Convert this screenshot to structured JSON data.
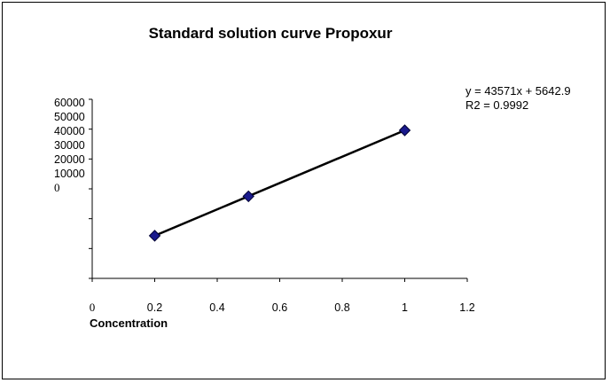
{
  "chart_data": {
    "type": "scatter",
    "title": "Standard solution curve Propoxur",
    "xlabel": "Concentration",
    "ylabel": "",
    "x_ticks": [
      {
        "value": 0,
        "label": "0"
      },
      {
        "value": 0.2,
        "label": "0.2"
      },
      {
        "value": 0.4,
        "label": "0.4"
      },
      {
        "value": 0.6,
        "label": "0.6"
      },
      {
        "value": 0.8,
        "label": "0.8"
      },
      {
        "value": 1,
        "label": "1"
      },
      {
        "value": 1.2,
        "label": "1.2"
      }
    ],
    "y_tick_labels": [
      "60000",
      "50000",
      "40000",
      "30000",
      "20000",
      "10000",
      "0"
    ],
    "xlim": [
      0,
      1.2
    ],
    "ylim": [
      0,
      60000
    ],
    "series": [
      {
        "x": [
          0.2,
          0.5,
          1.0
        ],
        "y": [
          14300,
          27500,
          49600
        ],
        "marker": "diamond",
        "color": "#1a1a8c"
      }
    ],
    "trendline": {
      "slope": 43571,
      "intercept": 5642.9,
      "color": "#000000",
      "equation_label": "y = 43571x + 5642.9",
      "r2_label": "R2 = 0.9992"
    },
    "grid": false,
    "legend": "none"
  }
}
